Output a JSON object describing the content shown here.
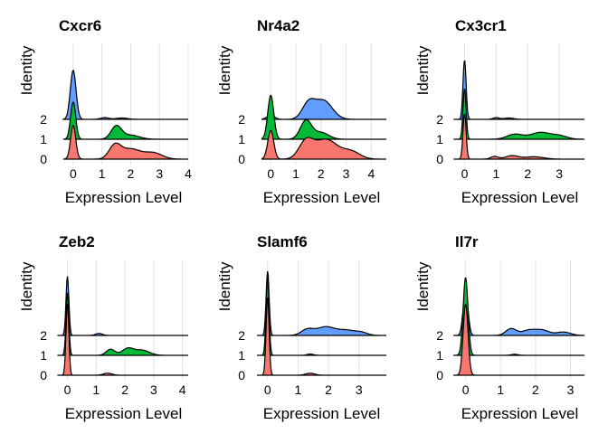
{
  "chart_data": [
    {
      "type": "ridgeline",
      "title": "Cxcr6",
      "xlabel": "Expression Level",
      "ylabel": "Identity",
      "xlim": [
        -0.5,
        4.0
      ],
      "xticks": [
        0,
        1,
        2,
        3,
        4
      ],
      "xmax_data": 4.0,
      "identities": [
        "0",
        "1",
        "2"
      ],
      "series": [
        {
          "name": "0",
          "color": "#F8766D",
          "peaks": [
            [
              0.0,
              1.0,
              0.09
            ],
            [
              1.45,
              0.38,
              0.2
            ],
            [
              2.0,
              0.3,
              0.35
            ],
            [
              2.8,
              0.18,
              0.3
            ]
          ]
        },
        {
          "name": "1",
          "color": "#00BA38",
          "peaks": [
            [
              0.0,
              1.1,
              0.09
            ],
            [
              1.5,
              0.38,
              0.18
            ],
            [
              2.0,
              0.12,
              0.3
            ]
          ]
        },
        {
          "name": "2",
          "color": "#619CFF",
          "peaks": [
            [
              0.0,
              1.45,
              0.1
            ],
            [
              1.1,
              0.05,
              0.15
            ],
            [
              1.7,
              0.04,
              0.2
            ]
          ]
        }
      ]
    },
    {
      "type": "ridgeline",
      "title": "Nr4a2",
      "xlabel": "Expression Level",
      "ylabel": "Identity",
      "xlim": [
        -0.55,
        4.6
      ],
      "xticks": [
        0,
        1,
        2,
        3,
        4
      ],
      "xmax_data": 4.6,
      "identities": [
        "0",
        "1",
        "2"
      ],
      "series": [
        {
          "name": "0",
          "color": "#F8766D",
          "peaks": [
            [
              0.0,
              0.85,
              0.12
            ],
            [
              1.4,
              0.5,
              0.28
            ],
            [
              2.2,
              0.58,
              0.45
            ],
            [
              3.2,
              0.22,
              0.35
            ]
          ]
        },
        {
          "name": "1",
          "color": "#00BA38",
          "peaks": [
            [
              0.0,
              1.3,
              0.12
            ],
            [
              1.4,
              0.55,
              0.22
            ],
            [
              2.0,
              0.2,
              0.3
            ]
          ]
        },
        {
          "name": "2",
          "color": "#619CFF",
          "peaks": [
            [
              0.0,
              0.12,
              0.15
            ],
            [
              1.5,
              0.45,
              0.25
            ],
            [
              2.1,
              0.55,
              0.35
            ]
          ]
        }
      ]
    },
    {
      "type": "ridgeline",
      "title": "Cx3cr1",
      "xlabel": "Expression Level",
      "ylabel": "Identity",
      "xlim": [
        -0.3,
        3.8
      ],
      "xticks": [
        0,
        1,
        2,
        3
      ],
      "xmax_data": 3.8,
      "identities": [
        "0",
        "1",
        "2"
      ],
      "series": [
        {
          "name": "0",
          "color": "#F8766D",
          "peaks": [
            [
              0.0,
              1.35,
              0.05
            ],
            [
              0.95,
              0.08,
              0.12
            ],
            [
              1.5,
              0.1,
              0.2
            ],
            [
              2.2,
              0.07,
              0.3
            ]
          ]
        },
        {
          "name": "1",
          "color": "#00BA38",
          "peaks": [
            [
              0.0,
              1.5,
              0.05
            ],
            [
              1.6,
              0.15,
              0.25
            ],
            [
              2.4,
              0.2,
              0.3
            ],
            [
              3.0,
              0.1,
              0.25
            ]
          ]
        },
        {
          "name": "2",
          "color": "#619CFF",
          "peaks": [
            [
              0.0,
              1.75,
              0.05
            ],
            [
              1.0,
              0.05,
              0.1
            ],
            [
              1.4,
              0.04,
              0.15
            ]
          ]
        }
      ]
    },
    {
      "type": "ridgeline",
      "title": "Zeb2",
      "xlabel": "Expression Level",
      "ylabel": "Identity",
      "xlim": [
        -0.3,
        4.2
      ],
      "xticks": [
        0,
        1,
        2,
        3,
        4
      ],
      "xmax_data": 4.2,
      "identities": [
        "0",
        "1",
        "2"
      ],
      "series": [
        {
          "name": "0",
          "color": "#F8766D",
          "peaks": [
            [
              0.0,
              2.1,
              0.05
            ],
            [
              1.4,
              0.06,
              0.15
            ]
          ]
        },
        {
          "name": "1",
          "color": "#00BA38",
          "peaks": [
            [
              0.0,
              1.85,
              0.05
            ],
            [
              1.5,
              0.18,
              0.15
            ],
            [
              2.1,
              0.2,
              0.2
            ],
            [
              2.6,
              0.15,
              0.25
            ]
          ]
        },
        {
          "name": "2",
          "color": "#619CFF",
          "peaks": [
            [
              0.0,
              1.75,
              0.05
            ],
            [
              1.1,
              0.06,
              0.12
            ]
          ]
        }
      ]
    },
    {
      "type": "ridgeline",
      "title": "Slamf6",
      "xlabel": "Expression Level",
      "ylabel": "Identity",
      "xlim": [
        -0.35,
        3.9
      ],
      "xticks": [
        0,
        1,
        2,
        3
      ],
      "xmax_data": 3.9,
      "identities": [
        "0",
        "1",
        "2"
      ],
      "series": [
        {
          "name": "0",
          "color": "#F8766D",
          "peaks": [
            [
              0.0,
              2.3,
              0.05
            ],
            [
              1.4,
              0.06,
              0.15
            ]
          ]
        },
        {
          "name": "1",
          "color": "#00BA38",
          "peaks": [
            [
              0.0,
              2.3,
              0.05
            ],
            [
              1.4,
              0.04,
              0.1
            ]
          ]
        },
        {
          "name": "2",
          "color": "#619CFF",
          "peaks": [
            [
              0.0,
              1.9,
              0.05
            ],
            [
              1.3,
              0.17,
              0.2
            ],
            [
              1.9,
              0.25,
              0.3
            ],
            [
              2.6,
              0.15,
              0.3
            ],
            [
              3.1,
              0.07,
              0.2
            ]
          ]
        }
      ]
    },
    {
      "type": "ridgeline",
      "title": "Il7r",
      "xlabel": "Expression Level",
      "ylabel": "Identity",
      "xlim": [
        -0.3,
        3.4
      ],
      "xticks": [
        0,
        1,
        2,
        3
      ],
      "xmax_data": 3.4,
      "identities": [
        "0",
        "1",
        "2"
      ],
      "series": [
        {
          "name": "0",
          "color": "#F8766D",
          "peaks": [
            [
              0.0,
              2.1,
              0.07
            ]
          ]
        },
        {
          "name": "1",
          "color": "#00BA38",
          "peaks": [
            [
              0.0,
              2.3,
              0.07
            ],
            [
              1.4,
              0.03,
              0.1
            ]
          ]
        },
        {
          "name": "2",
          "color": "#619CFF",
          "peaks": [
            [
              0.0,
              1.3,
              0.07
            ],
            [
              1.3,
              0.2,
              0.15
            ],
            [
              1.8,
              0.15,
              0.2
            ],
            [
              2.2,
              0.15,
              0.2
            ],
            [
              2.8,
              0.1,
              0.2
            ]
          ]
        }
      ]
    }
  ]
}
